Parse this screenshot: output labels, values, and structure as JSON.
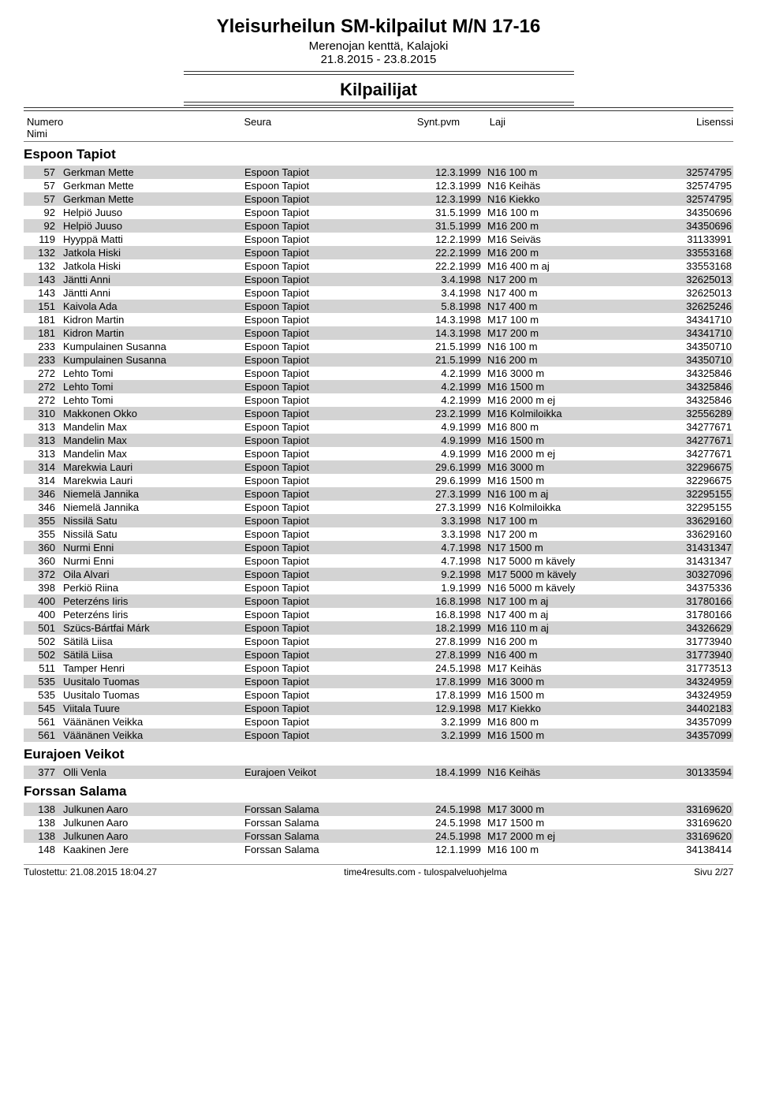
{
  "header": {
    "title": "Yleisurheilun SM-kilpailut M/N 17-16",
    "venue": "Merenojan kenttä, Kalajoki",
    "dates": "21.8.2015 - 23.8.2015",
    "section": "Kilpailijat"
  },
  "columns": {
    "num": "Numero",
    "name": "Nimi",
    "club": "Seura",
    "dob": "Synt.pvm",
    "event": "Laji",
    "licence": "Lisenssi"
  },
  "clubs": [
    {
      "name": "Espoon Tapiot",
      "rows": [
        {
          "num": "57",
          "name": "Gerkman Mette",
          "club": "Espoon Tapiot",
          "dob": "12.3.1999",
          "event": "N16 100 m",
          "lic": "32574795"
        },
        {
          "num": "57",
          "name": "Gerkman Mette",
          "club": "Espoon Tapiot",
          "dob": "12.3.1999",
          "event": "N16 Keihäs",
          "lic": "32574795"
        },
        {
          "num": "57",
          "name": "Gerkman Mette",
          "club": "Espoon Tapiot",
          "dob": "12.3.1999",
          "event": "N16 Kiekko",
          "lic": "32574795"
        },
        {
          "num": "92",
          "name": "Helpiö Juuso",
          "club": "Espoon Tapiot",
          "dob": "31.5.1999",
          "event": "M16 100 m",
          "lic": "34350696"
        },
        {
          "num": "92",
          "name": "Helpiö Juuso",
          "club": "Espoon Tapiot",
          "dob": "31.5.1999",
          "event": "M16 200 m",
          "lic": "34350696"
        },
        {
          "num": "119",
          "name": "Hyyppä Matti",
          "club": "Espoon Tapiot",
          "dob": "12.2.1999",
          "event": "M16 Seiväs",
          "lic": "31133991"
        },
        {
          "num": "132",
          "name": "Jatkola Hiski",
          "club": "Espoon Tapiot",
          "dob": "22.2.1999",
          "event": "M16 200 m",
          "lic": "33553168"
        },
        {
          "num": "132",
          "name": "Jatkola Hiski",
          "club": "Espoon Tapiot",
          "dob": "22.2.1999",
          "event": "M16 400 m aj",
          "lic": "33553168"
        },
        {
          "num": "143",
          "name": "Jäntti Anni",
          "club": "Espoon Tapiot",
          "dob": "3.4.1998",
          "event": "N17 200 m",
          "lic": "32625013"
        },
        {
          "num": "143",
          "name": "Jäntti Anni",
          "club": "Espoon Tapiot",
          "dob": "3.4.1998",
          "event": "N17 400 m",
          "lic": "32625013"
        },
        {
          "num": "151",
          "name": "Kaivola Ada",
          "club": "Espoon Tapiot",
          "dob": "5.8.1998",
          "event": "N17 400 m",
          "lic": "32625246"
        },
        {
          "num": "181",
          "name": "Kidron Martin",
          "club": "Espoon Tapiot",
          "dob": "14.3.1998",
          "event": "M17 100 m",
          "lic": "34341710"
        },
        {
          "num": "181",
          "name": "Kidron Martin",
          "club": "Espoon Tapiot",
          "dob": "14.3.1998",
          "event": "M17 200 m",
          "lic": "34341710"
        },
        {
          "num": "233",
          "name": "Kumpulainen Susanna",
          "club": "Espoon Tapiot",
          "dob": "21.5.1999",
          "event": "N16 100 m",
          "lic": "34350710"
        },
        {
          "num": "233",
          "name": "Kumpulainen Susanna",
          "club": "Espoon Tapiot",
          "dob": "21.5.1999",
          "event": "N16 200 m",
          "lic": "34350710"
        },
        {
          "num": "272",
          "name": "Lehto Tomi",
          "club": "Espoon Tapiot",
          "dob": "4.2.1999",
          "event": "M16 3000 m",
          "lic": "34325846"
        },
        {
          "num": "272",
          "name": "Lehto Tomi",
          "club": "Espoon Tapiot",
          "dob": "4.2.1999",
          "event": "M16 1500 m",
          "lic": "34325846"
        },
        {
          "num": "272",
          "name": "Lehto Tomi",
          "club": "Espoon Tapiot",
          "dob": "4.2.1999",
          "event": "M16 2000 m ej",
          "lic": "34325846"
        },
        {
          "num": "310",
          "name": "Makkonen Okko",
          "club": "Espoon Tapiot",
          "dob": "23.2.1999",
          "event": "M16 Kolmiloikka",
          "lic": "32556289"
        },
        {
          "num": "313",
          "name": "Mandelin Max",
          "club": "Espoon Tapiot",
          "dob": "4.9.1999",
          "event": "M16 800 m",
          "lic": "34277671"
        },
        {
          "num": "313",
          "name": "Mandelin Max",
          "club": "Espoon Tapiot",
          "dob": "4.9.1999",
          "event": "M16 1500 m",
          "lic": "34277671"
        },
        {
          "num": "313",
          "name": "Mandelin Max",
          "club": "Espoon Tapiot",
          "dob": "4.9.1999",
          "event": "M16 2000 m ej",
          "lic": "34277671"
        },
        {
          "num": "314",
          "name": "Marekwia Lauri",
          "club": "Espoon Tapiot",
          "dob": "29.6.1999",
          "event": "M16 3000 m",
          "lic": "32296675"
        },
        {
          "num": "314",
          "name": "Marekwia Lauri",
          "club": "Espoon Tapiot",
          "dob": "29.6.1999",
          "event": "M16 1500 m",
          "lic": "32296675"
        },
        {
          "num": "346",
          "name": "Niemelä Jannika",
          "club": "Espoon Tapiot",
          "dob": "27.3.1999",
          "event": "N16 100 m aj",
          "lic": "32295155"
        },
        {
          "num": "346",
          "name": "Niemelä Jannika",
          "club": "Espoon Tapiot",
          "dob": "27.3.1999",
          "event": "N16 Kolmiloikka",
          "lic": "32295155"
        },
        {
          "num": "355",
          "name": "Nissilä Satu",
          "club": "Espoon Tapiot",
          "dob": "3.3.1998",
          "event": "N17 100 m",
          "lic": "33629160"
        },
        {
          "num": "355",
          "name": "Nissilä Satu",
          "club": "Espoon Tapiot",
          "dob": "3.3.1998",
          "event": "N17 200 m",
          "lic": "33629160"
        },
        {
          "num": "360",
          "name": "Nurmi Enni",
          "club": "Espoon Tapiot",
          "dob": "4.7.1998",
          "event": "N17 1500 m",
          "lic": "31431347"
        },
        {
          "num": "360",
          "name": "Nurmi Enni",
          "club": "Espoon Tapiot",
          "dob": "4.7.1998",
          "event": "N17 5000 m kävely",
          "lic": "31431347"
        },
        {
          "num": "372",
          "name": "Oila Alvari",
          "club": "Espoon Tapiot",
          "dob": "9.2.1998",
          "event": "M17 5000 m kävely",
          "lic": "30327096"
        },
        {
          "num": "398",
          "name": "Perkiö Riina",
          "club": "Espoon Tapiot",
          "dob": "1.9.1999",
          "event": "N16 5000 m kävely",
          "lic": "34375336"
        },
        {
          "num": "400",
          "name": "Peterzéns Iiris",
          "club": "Espoon Tapiot",
          "dob": "16.8.1998",
          "event": "N17 100 m aj",
          "lic": "31780166"
        },
        {
          "num": "400",
          "name": "Peterzéns Iiris",
          "club": "Espoon Tapiot",
          "dob": "16.8.1998",
          "event": "N17 400 m aj",
          "lic": "31780166"
        },
        {
          "num": "501",
          "name": "Szücs-Bártfai Márk",
          "club": "Espoon Tapiot",
          "dob": "18.2.1999",
          "event": "M16 110 m aj",
          "lic": "34326629"
        },
        {
          "num": "502",
          "name": "Sätilä Liisa",
          "club": "Espoon Tapiot",
          "dob": "27.8.1999",
          "event": "N16 200 m",
          "lic": "31773940"
        },
        {
          "num": "502",
          "name": "Sätilä Liisa",
          "club": "Espoon Tapiot",
          "dob": "27.8.1999",
          "event": "N16 400 m",
          "lic": "31773940"
        },
        {
          "num": "511",
          "name": "Tamper Henri",
          "club": "Espoon Tapiot",
          "dob": "24.5.1998",
          "event": "M17 Keihäs",
          "lic": "31773513"
        },
        {
          "num": "535",
          "name": "Uusitalo Tuomas",
          "club": "Espoon Tapiot",
          "dob": "17.8.1999",
          "event": "M16 3000 m",
          "lic": "34324959"
        },
        {
          "num": "535",
          "name": "Uusitalo Tuomas",
          "club": "Espoon Tapiot",
          "dob": "17.8.1999",
          "event": "M16 1500 m",
          "lic": "34324959"
        },
        {
          "num": "545",
          "name": "Viitala Tuure",
          "club": "Espoon Tapiot",
          "dob": "12.9.1998",
          "event": "M17 Kiekko",
          "lic": "34402183"
        },
        {
          "num": "561",
          "name": "Väänänen Veikka",
          "club": "Espoon Tapiot",
          "dob": "3.2.1999",
          "event": "M16 800 m",
          "lic": "34357099"
        },
        {
          "num": "561",
          "name": "Väänänen Veikka",
          "club": "Espoon Tapiot",
          "dob": "3.2.1999",
          "event": "M16 1500 m",
          "lic": "34357099"
        }
      ]
    },
    {
      "name": "Eurajoen Veikot",
      "rows": [
        {
          "num": "377",
          "name": "Olli Venla",
          "club": "Eurajoen Veikot",
          "dob": "18.4.1999",
          "event": "N16 Keihäs",
          "lic": "30133594"
        }
      ]
    },
    {
      "name": "Forssan Salama",
      "rows": [
        {
          "num": "138",
          "name": "Julkunen Aaro",
          "club": "Forssan Salama",
          "dob": "24.5.1998",
          "event": "M17 3000 m",
          "lic": "33169620"
        },
        {
          "num": "138",
          "name": "Julkunen Aaro",
          "club": "Forssan Salama",
          "dob": "24.5.1998",
          "event": "M17 1500 m",
          "lic": "33169620"
        },
        {
          "num": "138",
          "name": "Julkunen Aaro",
          "club": "Forssan Salama",
          "dob": "24.5.1998",
          "event": "M17 2000 m ej",
          "lic": "33169620"
        },
        {
          "num": "148",
          "name": "Kaakinen Jere",
          "club": "Forssan Salama",
          "dob": "12.1.1999",
          "event": "M16 100 m",
          "lic": "34138414"
        }
      ]
    }
  ],
  "footer": {
    "printed": "Tulostettu: 21.08.2015 18:04.27",
    "service": "time4results.com - tulospalveluohjelma",
    "page": "Sivu 2/27"
  }
}
